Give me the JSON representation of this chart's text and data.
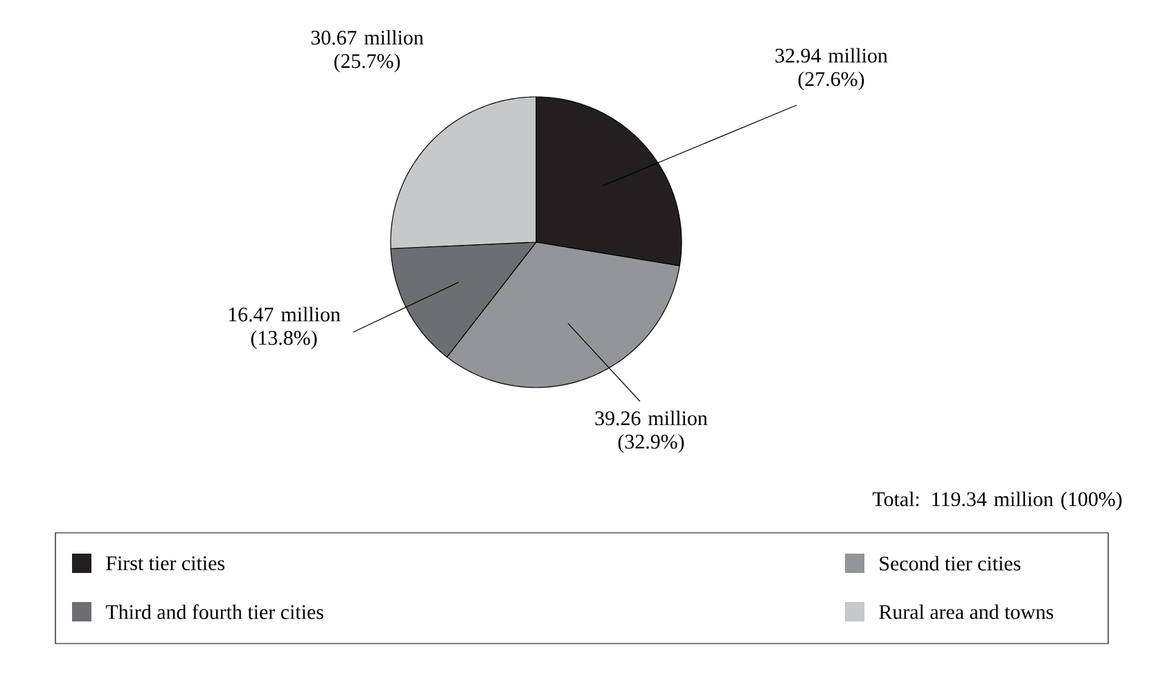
{
  "chart_data": {
    "type": "pie",
    "categories": [
      "First tier cities",
      "Second tier cities",
      "Third and fourth tier cities",
      "Rural area and towns"
    ],
    "values": [
      27.6,
      32.9,
      13.8,
      25.7
    ],
    "colors": [
      "#231f20",
      "#939598",
      "#6d6e71",
      "#c7c8ca"
    ],
    "value_labels": [
      "32.94 million (27.6%)",
      "39.26 million (32.9%)",
      "16.47 million (13.8%)",
      "30.67 million (25.7%)"
    ],
    "annotations": [
      "Total: 119.34 million (100%)"
    ],
    "legend": "bottom"
  }
}
